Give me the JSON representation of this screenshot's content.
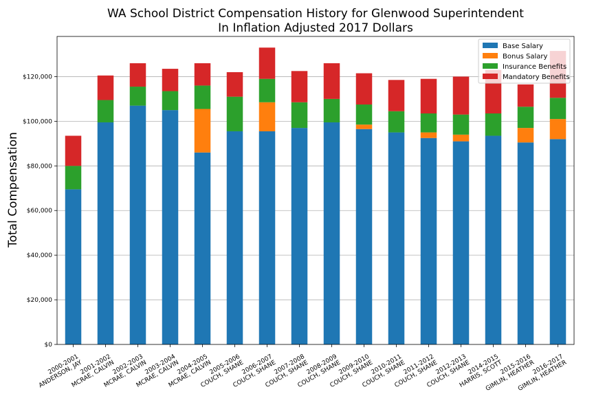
{
  "chart_data": {
    "type": "bar",
    "stacked": true,
    "title": "WA School District Compensation History for Glenwood Superintendent",
    "subtitle": "In Inflation Adjusted 2017 Dollars",
    "xlabel": "",
    "ylabel": "Total Compensation",
    "ylim": [
      0,
      138000
    ],
    "yticks": [
      0,
      20000,
      40000,
      60000,
      80000,
      100000,
      120000
    ],
    "ytick_labels": [
      "$0",
      "$20,000",
      "$40,000",
      "$60,000",
      "$80,000",
      "$100,000",
      "$120,000"
    ],
    "grid": "horizontal",
    "legend_position": "top-right",
    "categories": [
      [
        "2000-2001",
        "ANDERSON, JAY"
      ],
      [
        "2001-2002",
        "MCRAE, CALVIN"
      ],
      [
        "2002-2003",
        "MCRAE, CALVIN"
      ],
      [
        "2003-2004",
        "MCRAE, CALVIN"
      ],
      [
        "2004-2005",
        "MCRAE, CALVIN"
      ],
      [
        "2005-2006",
        "COUCH, SHANE"
      ],
      [
        "2006-2007",
        "COUCH, SHANE"
      ],
      [
        "2007-2008",
        "COUCH, SHANE"
      ],
      [
        "2008-2009",
        "COUCH, SHANE"
      ],
      [
        "2009-2010",
        "COUCH, SHANE"
      ],
      [
        "2010-2011",
        "COUCH, SHANE"
      ],
      [
        "2011-2012",
        "COUCH, SHANE"
      ],
      [
        "2012-2013",
        "COUCH, SHANE"
      ],
      [
        "2014-2015",
        "HARRIS, SCOTT"
      ],
      [
        "2015-2016",
        "GIMLIN, HEATHER"
      ],
      [
        "2016-2017",
        "GIMLIN, HEATHER"
      ]
    ],
    "series": [
      {
        "name": "Base Salary",
        "color": "#1f77b4",
        "values": [
          69500,
          99500,
          107000,
          105000,
          86000,
          95500,
          95500,
          97000,
          99500,
          96500,
          95000,
          92500,
          91000,
          93500,
          90500,
          92000
        ]
      },
      {
        "name": "Bonus Salary",
        "color": "#ff7f0e",
        "values": [
          0,
          0,
          0,
          0,
          19500,
          0,
          13000,
          0,
          0,
          2000,
          0,
          2500,
          3000,
          0,
          6500,
          9000
        ]
      },
      {
        "name": "Insurance Benefits",
        "color": "#2ca02c",
        "values": [
          10500,
          10000,
          8500,
          8500,
          10500,
          15500,
          10500,
          11500,
          10500,
          9000,
          9500,
          8500,
          9000,
          10000,
          9500,
          9500
        ]
      },
      {
        "name": "Mandatory Benefits",
        "color": "#d62728",
        "values": [
          13500,
          11000,
          10500,
          10000,
          10000,
          11000,
          14000,
          14000,
          16000,
          14000,
          14000,
          15500,
          17000,
          19500,
          10000,
          21000
        ]
      }
    ]
  }
}
